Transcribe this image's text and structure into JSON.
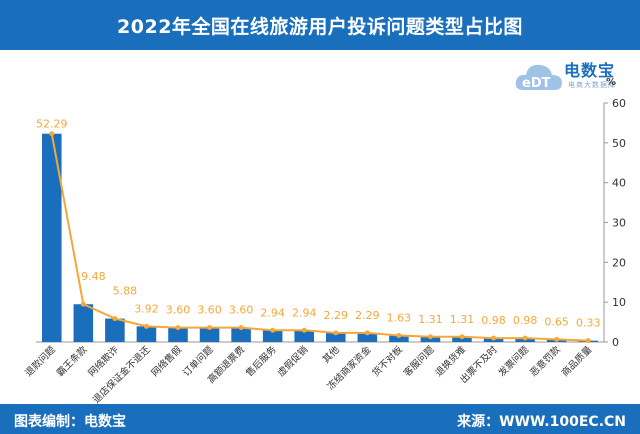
{
  "header": {
    "title": "2022年全国在线旅游用户投诉问题类型占比图"
  },
  "footer": {
    "left": "图表编制：电数宝",
    "right": "来源：WWW.100EC.CN"
  },
  "logo": {
    "mark": "eDT",
    "brand": "电数宝",
    "subtitle": "电商大数据库",
    "unit": "%"
  },
  "colors": {
    "bar": "#1a6fbd",
    "line": "#f5a83a",
    "header": "#1a6fbd"
  },
  "chart_data": {
    "type": "bar",
    "categories": [
      "退款问题",
      "霸王条款",
      "网络欺诈",
      "退店保证金不退还",
      "网络售假",
      "订单问题",
      "高额退票费",
      "售后服务",
      "虚假促销",
      "其他",
      "冻结商家资金",
      "货不对板",
      "客服问题",
      "退换货难",
      "出票不及时",
      "发票问题",
      "恶意罚款",
      "商品质量"
    ],
    "values": [
      52.29,
      9.48,
      5.88,
      3.92,
      3.6,
      3.6,
      3.6,
      2.94,
      2.94,
      2.29,
      2.29,
      1.63,
      1.31,
      1.31,
      0.98,
      0.98,
      0.65,
      0.33
    ],
    "labels": [
      "52.29",
      "9.48",
      "5.88",
      "3.92",
      "3.60",
      "3.60",
      "3.60",
      "2.94",
      "2.94",
      "2.29",
      "2.29",
      "1.63",
      "1.31",
      "1.31",
      "0.98",
      "0.98",
      "0.65",
      "0.33"
    ],
    "overlay": "line",
    "y_axis_position": "right",
    "yticks": [
      "0",
      "10",
      "20",
      "30",
      "40",
      "50",
      "60"
    ],
    "ylim": [
      0,
      60
    ],
    "grid": false,
    "title": "",
    "xlabel": "",
    "ylabel": ""
  }
}
